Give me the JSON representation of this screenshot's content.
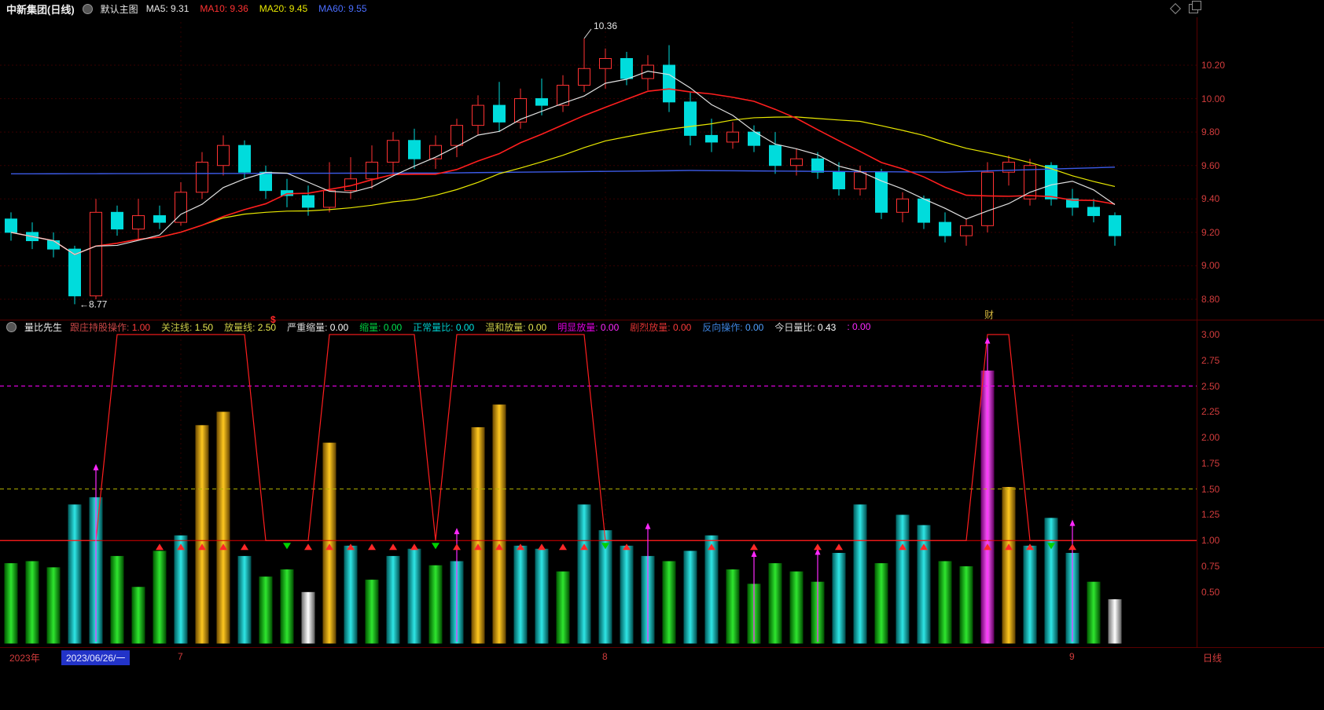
{
  "title_bar": {
    "symbol_title": "中新集团(日线)",
    "main_chart_label": "默认主图",
    "ma_labels": [
      {
        "text": "MA5: 9.31",
        "color": "#e8e8e8"
      },
      {
        "text": "MA10: 9.36",
        "color": "#ff3232"
      },
      {
        "text": "MA20: 9.45",
        "color": "#e8e800"
      },
      {
        "text": "MA60: 9.55",
        "color": "#4b6eff"
      }
    ],
    "icons": [
      "main-chart-toggle-icon",
      "diamond-icon",
      "overlap-panels-icon"
    ]
  },
  "main_chart": {
    "news_flag": "财",
    "up_color": "#ff3232",
    "down_color": "#00dcdc",
    "axis_color": "#d23c3c"
  },
  "indicator_bar": {
    "name": "量比先生",
    "dollar": "$",
    "icons": [
      "indicator-toggle-icon"
    ],
    "fields": [
      {
        "label": "跟庄持股操作:",
        "value": "1.00",
        "lc": "#c84646",
        "vc": "#ff3c3c"
      },
      {
        "label": "关注线:",
        "value": "1.50",
        "lc": "#c8c846",
        "vc": "#e8e850"
      },
      {
        "label": "放量线:",
        "value": "2.50",
        "lc": "#c8c846",
        "vc": "#e8e850"
      },
      {
        "label": "严重缩量:",
        "value": "0.00",
        "lc": "#dcdcdc",
        "vc": "#ffffff"
      },
      {
        "label": "缩量:",
        "value": "0.00",
        "lc": "#00c83c",
        "vc": "#00e650"
      },
      {
        "label": "正常量比:",
        "value": "0.00",
        "lc": "#00c8c8",
        "vc": "#00e6e6"
      },
      {
        "label": "温和放量:",
        "value": "0.00",
        "lc": "#c8c846",
        "vc": "#e8e850"
      },
      {
        "label": "明显放量:",
        "value": "0.00",
        "lc": "#dc00dc",
        "vc": "#ff28ff"
      },
      {
        "label": "剧烈放量:",
        "value": "0.00",
        "lc": "#dc3232",
        "vc": "#ff3c3c"
      },
      {
        "label": "反向操作:",
        "value": "0.00",
        "lc": "#3c82dc",
        "vc": "#50a0ff"
      },
      {
        "label": "今日量比:",
        "value": "0.43",
        "lc": "#dcdcdc",
        "vc": "#ffffff"
      },
      {
        "label": ":",
        "value": "0.00",
        "lc": "#ff28ff",
        "vc": "#ff28ff"
      }
    ]
  },
  "x_axis": {
    "year_label": "2023年",
    "start_date": "2023/06/26/一",
    "ticks": [
      {
        "label": "7",
        "index": 8
      },
      {
        "label": "8",
        "index": 28
      },
      {
        "label": "9",
        "index": 50
      }
    ],
    "period_label": "日线"
  },
  "chart_data": [
    {
      "type": "candlestick",
      "title": "中新集团 日线",
      "ylim": [
        8.68,
        10.49
      ],
      "y_ticks": [
        8.8,
        9.0,
        9.2,
        9.4,
        9.6,
        9.8,
        10.0,
        10.2
      ],
      "high_annotation": {
        "index": 27,
        "value": 10.36
      },
      "low_annotation": {
        "index": 3,
        "value": 8.77
      },
      "ma_values_shown": {
        "MA5": 9.31,
        "MA10": 9.36,
        "MA20": 9.45,
        "MA60": 9.55
      },
      "ma60_anchors": [
        [
          0,
          9.55
        ],
        [
          20,
          9.555
        ],
        [
          32,
          9.57
        ],
        [
          44,
          9.56
        ],
        [
          52,
          9.59
        ]
      ],
      "ohlc": [
        [
          9.28,
          9.32,
          9.15,
          9.2
        ],
        [
          9.2,
          9.26,
          9.1,
          9.15
        ],
        [
          9.15,
          9.2,
          9.05,
          9.1
        ],
        [
          9.1,
          9.12,
          8.77,
          8.82
        ],
        [
          8.82,
          9.4,
          8.8,
          9.32
        ],
        [
          9.32,
          9.36,
          9.18,
          9.22
        ],
        [
          9.22,
          9.4,
          9.15,
          9.3
        ],
        [
          9.3,
          9.36,
          9.22,
          9.26
        ],
        [
          9.26,
          9.5,
          9.24,
          9.44
        ],
        [
          9.44,
          9.68,
          9.4,
          9.62
        ],
        [
          9.6,
          9.78,
          9.54,
          9.72
        ],
        [
          9.72,
          9.75,
          9.52,
          9.56
        ],
        [
          9.56,
          9.6,
          9.4,
          9.45
        ],
        [
          9.45,
          9.52,
          9.35,
          9.42
        ],
        [
          9.42,
          9.48,
          9.3,
          9.35
        ],
        [
          9.35,
          9.62,
          9.32,
          9.45
        ],
        [
          9.45,
          9.65,
          9.4,
          9.52
        ],
        [
          9.52,
          9.72,
          9.46,
          9.62
        ],
        [
          9.62,
          9.8,
          9.55,
          9.75
        ],
        [
          9.75,
          9.82,
          9.58,
          9.64
        ],
        [
          9.64,
          9.78,
          9.58,
          9.72
        ],
        [
          9.72,
          9.88,
          9.65,
          9.84
        ],
        [
          9.84,
          10.02,
          9.78,
          9.96
        ],
        [
          9.96,
          10.1,
          9.8,
          9.86
        ],
        [
          9.86,
          10.06,
          9.82,
          10.0
        ],
        [
          10.0,
          10.12,
          9.9,
          9.96
        ],
        [
          9.96,
          10.14,
          9.92,
          10.08
        ],
        [
          10.08,
          10.36,
          10.04,
          10.18
        ],
        [
          10.18,
          10.3,
          10.06,
          10.24
        ],
        [
          10.24,
          10.28,
          10.08,
          10.12
        ],
        [
          10.12,
          10.26,
          10.05,
          10.2
        ],
        [
          10.2,
          10.32,
          9.92,
          9.98
        ],
        [
          9.98,
          10.04,
          9.72,
          9.78
        ],
        [
          9.78,
          9.88,
          9.68,
          9.74
        ],
        [
          9.74,
          9.86,
          9.7,
          9.8
        ],
        [
          9.8,
          9.84,
          9.68,
          9.72
        ],
        [
          9.72,
          9.8,
          9.55,
          9.6
        ],
        [
          9.6,
          9.7,
          9.54,
          9.64
        ],
        [
          9.64,
          9.68,
          9.52,
          9.56
        ],
        [
          9.56,
          9.62,
          9.42,
          9.46
        ],
        [
          9.46,
          9.6,
          9.42,
          9.56
        ],
        [
          9.56,
          9.58,
          9.28,
          9.32
        ],
        [
          9.32,
          9.44,
          9.26,
          9.4
        ],
        [
          9.4,
          9.42,
          9.22,
          9.26
        ],
        [
          9.26,
          9.32,
          9.14,
          9.18
        ],
        [
          9.18,
          9.28,
          9.12,
          9.24
        ],
        [
          9.24,
          9.62,
          9.2,
          9.56
        ],
        [
          9.56,
          9.66,
          9.48,
          9.62
        ],
        [
          9.4,
          9.64,
          9.36,
          9.6
        ],
        [
          9.6,
          9.62,
          9.36,
          9.4
        ],
        [
          9.4,
          9.46,
          9.3,
          9.35
        ],
        [
          9.35,
          9.4,
          9.26,
          9.3
        ],
        [
          9.3,
          9.32,
          9.12,
          9.18
        ]
      ]
    },
    {
      "type": "bar",
      "title": "量比先生",
      "ylim": [
        0,
        3.0
      ],
      "y_ticks": [
        0.5,
        0.75,
        1.0,
        1.25,
        1.5,
        1.75,
        2.0,
        2.25,
        2.5,
        2.75,
        3.0
      ],
      "today_ratio": 0.43,
      "ref_lines": [
        {
          "value": 2.5,
          "color": "#ff00ff",
          "dashed": true
        },
        {
          "value": 1.5,
          "color": "#b4b400",
          "dashed": true
        },
        {
          "value": 1.0,
          "color": "#dd0000",
          "dashed": false
        }
      ],
      "bars": [
        {
          "v": 0.78,
          "c": "green",
          "m": "",
          "a": 0
        },
        {
          "v": 0.8,
          "c": "green",
          "m": "",
          "a": 0
        },
        {
          "v": 0.74,
          "c": "green",
          "m": "",
          "a": 0
        },
        {
          "v": 1.35,
          "c": "cyan",
          "m": "",
          "a": 0
        },
        {
          "v": 1.42,
          "c": "cyan",
          "m": "",
          "a": 1
        },
        {
          "v": 0.85,
          "c": "green",
          "m": "",
          "a": 0
        },
        {
          "v": 0.55,
          "c": "green",
          "m": "",
          "a": 0
        },
        {
          "v": 0.9,
          "c": "green",
          "m": "r",
          "a": 0
        },
        {
          "v": 1.05,
          "c": "cyan",
          "m": "r",
          "a": 0
        },
        {
          "v": 2.12,
          "c": "orange",
          "m": "r",
          "a": 0
        },
        {
          "v": 2.25,
          "c": "orange",
          "m": "r",
          "a": 0
        },
        {
          "v": 0.85,
          "c": "cyan",
          "m": "r",
          "a": 0
        },
        {
          "v": 0.65,
          "c": "green",
          "m": "",
          "a": 0
        },
        {
          "v": 0.72,
          "c": "green",
          "m": "g",
          "a": 0
        },
        {
          "v": 0.5,
          "c": "white",
          "m": "r",
          "a": 0
        },
        {
          "v": 1.95,
          "c": "orange",
          "m": "r",
          "a": 0
        },
        {
          "v": 0.95,
          "c": "cyan",
          "m": "r",
          "a": 0
        },
        {
          "v": 0.62,
          "c": "green",
          "m": "r",
          "a": 0
        },
        {
          "v": 0.85,
          "c": "cyan",
          "m": "r",
          "a": 0
        },
        {
          "v": 0.92,
          "c": "cyan",
          "m": "r",
          "a": 0
        },
        {
          "v": 0.76,
          "c": "green",
          "m": "g",
          "a": 0
        },
        {
          "v": 0.8,
          "c": "cyan",
          "m": "r",
          "a": 1
        },
        {
          "v": 2.1,
          "c": "orange",
          "m": "r",
          "a": 0
        },
        {
          "v": 2.32,
          "c": "orange",
          "m": "r",
          "a": 0
        },
        {
          "v": 0.95,
          "c": "cyan",
          "m": "r",
          "a": 0
        },
        {
          "v": 0.92,
          "c": "cyan",
          "m": "r",
          "a": 0
        },
        {
          "v": 0.7,
          "c": "green",
          "m": "r",
          "a": 0
        },
        {
          "v": 1.35,
          "c": "cyan",
          "m": "r",
          "a": 0
        },
        {
          "v": 1.1,
          "c": "cyan",
          "m": "g",
          "a": 0
        },
        {
          "v": 0.95,
          "c": "cyan",
          "m": "r",
          "a": 0
        },
        {
          "v": 0.85,
          "c": "cyan",
          "m": "",
          "a": 1
        },
        {
          "v": 0.8,
          "c": "green",
          "m": "",
          "a": 0
        },
        {
          "v": 0.9,
          "c": "cyan",
          "m": "",
          "a": 0
        },
        {
          "v": 1.05,
          "c": "cyan",
          "m": "r",
          "a": 0
        },
        {
          "v": 0.72,
          "c": "green",
          "m": "",
          "a": 0
        },
        {
          "v": 0.58,
          "c": "green",
          "m": "r",
          "a": 1
        },
        {
          "v": 0.78,
          "c": "green",
          "m": "",
          "a": 0
        },
        {
          "v": 0.7,
          "c": "green",
          "m": "",
          "a": 0
        },
        {
          "v": 0.6,
          "c": "green",
          "m": "r",
          "a": 1
        },
        {
          "v": 0.88,
          "c": "cyan",
          "m": "r",
          "a": 0
        },
        {
          "v": 1.35,
          "c": "cyan",
          "m": "",
          "a": 0
        },
        {
          "v": 0.78,
          "c": "green",
          "m": "",
          "a": 0
        },
        {
          "v": 1.25,
          "c": "cyan",
          "m": "r",
          "a": 0
        },
        {
          "v": 1.15,
          "c": "cyan",
          "m": "r",
          "a": 0
        },
        {
          "v": 0.8,
          "c": "green",
          "m": "",
          "a": 0
        },
        {
          "v": 0.75,
          "c": "green",
          "m": "",
          "a": 0
        },
        {
          "v": 2.65,
          "c": "magenta",
          "m": "r",
          "a": 1
        },
        {
          "v": 1.52,
          "c": "orange",
          "m": "r",
          "a": 0
        },
        {
          "v": 0.95,
          "c": "cyan",
          "m": "r",
          "a": 0
        },
        {
          "v": 1.22,
          "c": "cyan",
          "m": "g",
          "a": 0
        },
        {
          "v": 0.88,
          "c": "cyan",
          "m": "r",
          "a": 1
        },
        {
          "v": 0.6,
          "c": "green",
          "m": "",
          "a": 0
        },
        {
          "v": 0.43,
          "c": "white",
          "m": "",
          "a": 0
        }
      ],
      "signal_line": [
        1,
        1,
        1,
        1,
        1,
        3,
        3,
        3,
        3,
        3,
        3,
        3,
        1,
        1,
        1,
        3,
        3,
        3,
        3,
        3,
        1,
        3,
        3,
        3,
        3,
        3,
        3,
        3,
        1,
        1,
        1,
        1,
        1,
        1,
        1,
        1,
        1,
        1,
        1,
        1,
        1,
        1,
        1,
        1,
        1,
        1,
        3,
        3,
        1,
        1,
        1,
        1,
        1
      ]
    }
  ]
}
